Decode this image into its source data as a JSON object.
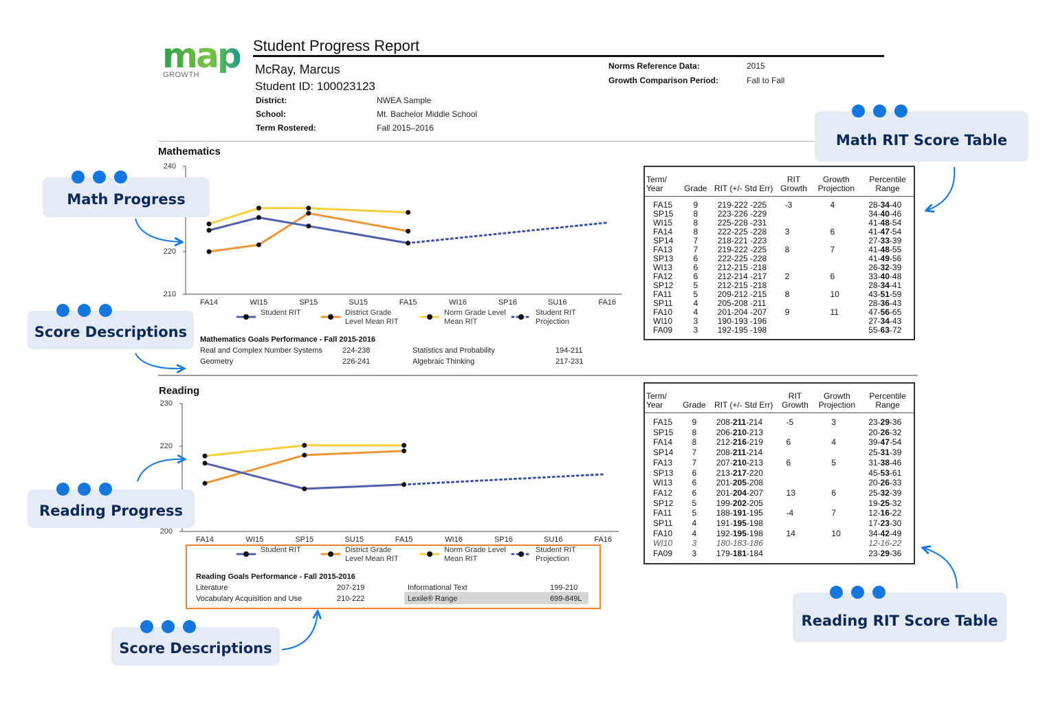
{
  "logo": {
    "text": "map",
    "subtext": "GROWTH"
  },
  "header": {
    "title": "Student Progress Report",
    "student_name": "McRay, Marcus",
    "student_id": "Student ID: 100023123",
    "fields": [
      {
        "label": "District:",
        "value": "NWEA Sample"
      },
      {
        "label": "School:",
        "value": "Mt. Bachelor Middle School"
      },
      {
        "label": "Term Rostered:",
        "value": "Fall 2015–2016"
      }
    ],
    "norms": [
      {
        "label": "Norms Reference Data:",
        "value": "2015"
      },
      {
        "label": "Growth Comparison Period:",
        "value": "Fall to Fall"
      }
    ]
  },
  "sections": [
    {
      "title": "Mathematics"
    },
    {
      "title": "Reading"
    }
  ],
  "chart_data": [
    {
      "type": "line",
      "categories": [
        "FA14",
        "WI15",
        "SP15",
        "SU15",
        "FA15",
        "WI16",
        "SP16",
        "SU16",
        "FA16"
      ],
      "ylim": [
        210,
        240
      ],
      "yticks": [
        210,
        220,
        240
      ],
      "grid": false,
      "series": [
        {
          "name": "Norm Grade Level Mean RIT",
          "color": "#f6cf3c",
          "x": [
            "FA14",
            "WI15",
            "SP15",
            "FA15"
          ],
          "values": [
            226.5,
            230.2,
            230.2,
            229.2
          ]
        },
        {
          "name": "District Grade Level Mean RIT",
          "color": "#ef9434",
          "x": [
            "FA14",
            "WI15",
            "SP15",
            "FA15"
          ],
          "values": [
            220,
            221.6,
            229,
            224.8
          ]
        },
        {
          "name": "Student RIT",
          "color": "#4f5fae",
          "x": [
            "FA14",
            "WI15",
            "SP15",
            "FA15"
          ],
          "values": [
            225,
            228,
            226,
            222
          ]
        },
        {
          "name": "Student RIT Projection",
          "color": "#3b4ea8",
          "line_style": "dotted",
          "x": [
            "FA15",
            "FA16"
          ],
          "values": [
            222,
            226.8
          ]
        }
      ],
      "legend_order": [
        2,
        1,
        0,
        3
      ]
    },
    {
      "type": "line",
      "categories": [
        "FA14",
        "WI15",
        "SP15",
        "SU15",
        "FA15",
        "WI16",
        "SP16",
        "SU16",
        "FA16"
      ],
      "ylim": [
        200,
        230
      ],
      "yticks": [
        200,
        220,
        230
      ],
      "grid": false,
      "series": [
        {
          "name": "Norm Grade Level Mean RIT",
          "color": "#f6cf3c",
          "x": [
            "FA14",
            "SP15",
            "FA15"
          ],
          "values": [
            217.7,
            220.2,
            220.2
          ]
        },
        {
          "name": "District Grade Level Mean RIT",
          "color": "#ef9434",
          "x": [
            "FA14",
            "SP15",
            "FA15"
          ],
          "values": [
            211.3,
            217.9,
            218.9
          ]
        },
        {
          "name": "Student RIT",
          "color": "#4f5fae",
          "x": [
            "FA14",
            "SP15",
            "FA15"
          ],
          "values": [
            216,
            210,
            211
          ]
        },
        {
          "name": "Student RIT Projection",
          "color": "#3b4ea8",
          "line_style": "dotted",
          "x": [
            "FA15",
            "FA16"
          ],
          "values": [
            211,
            213.4
          ]
        }
      ],
      "legend_order": [
        2,
        1,
        0,
        3
      ]
    }
  ],
  "goals": [
    {
      "title": "Mathematics Goals Performance - Fall 2015-2016",
      "items": [
        {
          "name": "Real and Complex Number Systems",
          "range": "224-238"
        },
        {
          "name": "Statistics and Probability",
          "range": "194-211"
        },
        {
          "name": "Geometry",
          "range": "226-241"
        },
        {
          "name": "Algebraic Thinking",
          "range": "217-231"
        }
      ]
    },
    {
      "title": "Reading Goals Performance - Fall 2015-2016",
      "items": [
        {
          "name": "Literature",
          "range": "207-219"
        },
        {
          "name": "Informational Text",
          "range": "199-210"
        },
        {
          "name": "Vocabulary Acquisition and Use",
          "range": "210-222"
        },
        {
          "name": "Lexile® Range",
          "range": "699-849L",
          "highlight": true
        }
      ]
    }
  ],
  "tables": [
    {
      "headers": [
        "Term/ Year",
        "Grade",
        "RIT (+/- Std Err)",
        "RIT Growth",
        "Growth Projection",
        "Percentile Range"
      ],
      "rit_mid_bold": false,
      "rows": [
        {
          "term": "FA15",
          "grade": "9",
          "rit": [
            "219-",
            "222",
            " -225"
          ],
          "growth": "-3",
          "projection": "4",
          "percentile": [
            "28-",
            "34",
            "-40"
          ]
        },
        {
          "term": "SP15",
          "grade": "8",
          "rit": [
            "223-",
            "226",
            " -229"
          ],
          "percentile": [
            "34-",
            "40",
            "-46"
          ]
        },
        {
          "term": "WI15",
          "grade": "8",
          "rit": [
            "225-",
            "228",
            " -231"
          ],
          "percentile": [
            "41-",
            "48",
            "-54"
          ]
        },
        {
          "term": "FA14",
          "grade": "8",
          "rit": [
            "222-",
            "225",
            " -228"
          ],
          "growth": "3",
          "projection": "6",
          "percentile": [
            "41-",
            "47",
            "-54"
          ]
        },
        {
          "term": "SP14",
          "grade": "7",
          "rit": [
            "218-",
            "221",
            " -223"
          ],
          "percentile": [
            "27-",
            "33",
            "-39"
          ]
        },
        {
          "term": "FA13",
          "grade": "7",
          "rit": [
            "219-",
            "222",
            " -225"
          ],
          "growth": "8",
          "projection": "7",
          "percentile": [
            "41-",
            "48",
            "-55"
          ]
        },
        {
          "term": "SP13",
          "grade": "6",
          "rit": [
            "222-",
            "225",
            " -228"
          ],
          "percentile": [
            "41-",
            "49",
            "-56"
          ]
        },
        {
          "term": "WI13",
          "grade": "6",
          "rit": [
            "212-",
            "215",
            " -218"
          ],
          "percentile": [
            "26-",
            "32",
            "-39"
          ]
        },
        {
          "term": "FA12",
          "grade": "6",
          "rit": [
            "212-",
            "214",
            " -217"
          ],
          "growth": "2",
          "projection": "6",
          "percentile": [
            "33-",
            "40",
            "-48"
          ]
        },
        {
          "term": "SP12",
          "grade": "5",
          "rit": [
            "212-",
            "215",
            " -218"
          ],
          "percentile": [
            "28-",
            "34",
            "-41"
          ]
        },
        {
          "term": "FA11",
          "grade": "5",
          "rit": [
            "209-",
            "212",
            " -215"
          ],
          "growth": "8",
          "projection": "10",
          "percentile": [
            "43-",
            "51",
            "-59"
          ]
        },
        {
          "term": "SP11",
          "grade": "4",
          "rit": [
            "205-",
            "208",
            " -211"
          ],
          "percentile": [
            "28-",
            "36",
            "-43"
          ]
        },
        {
          "term": "FA10",
          "grade": "4",
          "rit": [
            "201-",
            "204",
            " -207"
          ],
          "growth": "9",
          "projection": "11",
          "percentile": [
            "47-",
            "56",
            "-65"
          ]
        },
        {
          "term": "WI10",
          "grade": "3",
          "rit": [
            "190-",
            "193",
            " -196"
          ],
          "percentile": [
            "27-",
            "34",
            "-43"
          ]
        },
        {
          "term": "FA09",
          "grade": "3",
          "rit": [
            "192-",
            "195",
            " -198"
          ],
          "percentile": [
            "55-",
            "63",
            "-72"
          ]
        }
      ]
    },
    {
      "headers": [
        "Term/ Year",
        "Grade",
        "RIT (+/- Std Err)",
        "RIT Growth",
        "Growth Projection",
        "Percentile Range"
      ],
      "rit_mid_bold": true,
      "rows": [
        {
          "term": "FA15",
          "grade": "9",
          "rit": [
            "208-",
            "211",
            "-214"
          ],
          "growth": "-5",
          "projection": "3",
          "percentile": [
            "23-",
            "29",
            "-36"
          ]
        },
        {
          "term": "SP15",
          "grade": "8",
          "rit": [
            "206-",
            "210",
            "-213"
          ],
          "percentile": [
            "20-",
            "26",
            "-32"
          ]
        },
        {
          "term": "FA14",
          "grade": "8",
          "rit": [
            "212-",
            "216",
            "-219"
          ],
          "growth": "6",
          "projection": "4",
          "percentile": [
            "39-",
            "47",
            "-54"
          ]
        },
        {
          "term": "SP14",
          "grade": "7",
          "rit": [
            "208-",
            "211",
            "-214"
          ],
          "percentile": [
            "25-",
            "31",
            "-39"
          ]
        },
        {
          "term": "FA13",
          "grade": "7",
          "rit": [
            "207-",
            "210",
            "-213"
          ],
          "growth": "6",
          "projection": "5",
          "percentile": [
            "31-",
            "38",
            "-46"
          ]
        },
        {
          "term": "SP13",
          "grade": "6",
          "rit": [
            "213-",
            "217",
            "-220"
          ],
          "percentile": [
            "45-",
            "53",
            "-61"
          ]
        },
        {
          "term": "WI13",
          "grade": "6",
          "rit": [
            "201-",
            "205",
            "-208"
          ],
          "percentile": [
            "20-",
            "26",
            "-33"
          ]
        },
        {
          "term": "FA12",
          "grade": "6",
          "rit": [
            "201-",
            "204",
            "-207"
          ],
          "growth": "13",
          "projection": "6",
          "percentile": [
            "25-",
            "32",
            "-39"
          ]
        },
        {
          "term": "SP12",
          "grade": "5",
          "rit": [
            "199-",
            "202",
            "-205"
          ],
          "percentile": [
            "19-",
            "25",
            "-32"
          ]
        },
        {
          "term": "FA11",
          "grade": "5",
          "rit": [
            "188-",
            "191",
            "-195"
          ],
          "growth": "-4",
          "projection": "7",
          "percentile": [
            "12-",
            "16",
            "-22"
          ]
        },
        {
          "term": "SP11",
          "grade": "4",
          "rit": [
            "191-",
            "195",
            "-198"
          ],
          "percentile": [
            "17-",
            "23",
            "-30"
          ]
        },
        {
          "term": "FA10",
          "grade": "4",
          "rit": [
            "192-",
            "195",
            "-198"
          ],
          "growth": "14",
          "projection": "10",
          "percentile": [
            "34-",
            "42",
            "-49"
          ]
        },
        {
          "term": "WI10",
          "grade": "3",
          "rit": [
            "180-183-186"
          ],
          "percentile": [
            "12-16-22"
          ],
          "italic": true
        },
        {
          "term": "FA09",
          "grade": "3",
          "rit": [
            "179-",
            "181",
            "-184"
          ],
          "percentile": [
            "23-",
            "29",
            "-36"
          ]
        }
      ]
    }
  ],
  "callouts": [
    {
      "label": "Math Progress"
    },
    {
      "label": "Score Descriptions"
    },
    {
      "label": "Math RIT Score Table"
    },
    {
      "label": "Reading Progress"
    },
    {
      "label": "Score Descriptions"
    },
    {
      "label": "Reading RIT Score Table"
    }
  ]
}
